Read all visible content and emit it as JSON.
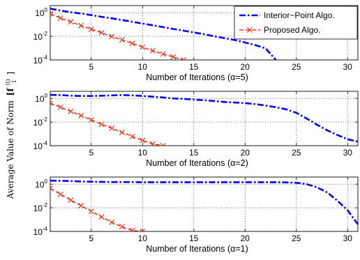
{
  "chart_data": {
    "type": "line",
    "ylabel": "Average Value of Norm",
    "ylabel_math": "[f",
    "ylabel_sup": "(t)",
    "ylabel_sub": "1",
    "ylabel_close": "]",
    "legend": {
      "placement": "top-right",
      "entries": [
        {
          "label": "Interior−Point Algo.",
          "color": "#0000ff",
          "style": "dash-dot"
        },
        {
          "label": "Proposed Algo.",
          "color": "#ff0000",
          "marker_color": "#d94820",
          "style": "dashed-x"
        }
      ]
    },
    "x_ticks": [
      5,
      10,
      15,
      20,
      25,
      30
    ],
    "y_tick_base": "10",
    "y_tick_exponents": [
      "0",
      "-2",
      "-4"
    ],
    "grid": "dotted",
    "panels": [
      {
        "xlabel": "Number of Iterations (α=5)",
        "xlim": [
          1,
          31
        ],
        "ylim_log10": [
          -4,
          0.6
        ],
        "interior_point": {
          "x": [
            1,
            2,
            3,
            4,
            5,
            6,
            7,
            8,
            9,
            10,
            11,
            12,
            13,
            14,
            15,
            16,
            17,
            18,
            19,
            20,
            21,
            22,
            23
          ],
          "y": [
            2.2,
            1.5,
            1.1,
            0.85,
            0.62,
            0.45,
            0.33,
            0.24,
            0.17,
            0.12,
            0.085,
            0.06,
            0.042,
            0.03,
            0.021,
            0.015,
            0.01,
            0.007,
            0.0048,
            0.003,
            0.0018,
            0.00095,
            0.0001
          ]
        },
        "proposed": {
          "x": [
            1,
            2,
            3,
            4,
            5,
            6,
            7,
            8,
            9,
            10,
            11,
            12,
            13,
            14
          ],
          "y": [
            0.8,
            0.35,
            0.17,
            0.08,
            0.04,
            0.02,
            0.0095,
            0.005,
            0.0025,
            0.0012,
            0.0006,
            0.00032,
            0.00018,
            0.0001
          ]
        }
      },
      {
        "xlabel": "Number of Iterations (α=2)",
        "xlim": [
          1,
          31
        ],
        "ylim_log10": [
          -4,
          0.6
        ],
        "interior_point": {
          "x": [
            1,
            2,
            3,
            4,
            5,
            6,
            7,
            8,
            9,
            10,
            11,
            12,
            13,
            14,
            15,
            16,
            17,
            18,
            19,
            20,
            21,
            22,
            23,
            24,
            25,
            26,
            27,
            28,
            29,
            30,
            31
          ],
          "y": [
            2.0,
            1.9,
            1.7,
            1.6,
            1.6,
            1.7,
            1.8,
            1.9,
            1.8,
            1.6,
            1.4,
            1.2,
            1.0,
            0.9,
            0.8,
            0.7,
            0.6,
            0.5,
            0.45,
            0.4,
            0.33,
            0.25,
            0.18,
            0.12,
            0.06,
            0.02,
            0.006,
            0.002,
            0.0008,
            0.00035,
            0.00022
          ]
        },
        "proposed": {
          "x": [
            1,
            2,
            3,
            4,
            5,
            6,
            7,
            8,
            9,
            10,
            11,
            12
          ],
          "y": [
            0.4,
            0.18,
            0.08,
            0.035,
            0.015,
            0.0065,
            0.003,
            0.0013,
            0.0006,
            0.00028,
            0.00014,
            0.0001
          ]
        }
      },
      {
        "xlabel": "Number of Iterations (α=1)",
        "xlim": [
          1,
          31
        ],
        "ylim_log10": [
          -4,
          0.6
        ],
        "interior_point": {
          "x": [
            1,
            2,
            3,
            4,
            5,
            6,
            7,
            8,
            9,
            10,
            11,
            12,
            13,
            14,
            15,
            16,
            17,
            18,
            19,
            20,
            21,
            22,
            23,
            24,
            25,
            26,
            27,
            28,
            29,
            30,
            31
          ],
          "y": [
            2.0,
            1.9,
            1.8,
            1.7,
            1.6,
            1.55,
            1.5,
            1.5,
            1.5,
            1.45,
            1.45,
            1.45,
            1.45,
            1.45,
            1.45,
            1.45,
            1.45,
            1.45,
            1.45,
            1.45,
            1.45,
            1.45,
            1.45,
            1.4,
            1.3,
            1.0,
            0.55,
            0.2,
            0.04,
            0.006,
            0.0004
          ]
        },
        "proposed": {
          "x": [
            1,
            2,
            3,
            4,
            5,
            6,
            7,
            8,
            9,
            10
          ],
          "y": [
            0.45,
            0.14,
            0.045,
            0.015,
            0.005,
            0.0017,
            0.0006,
            0.00025,
            0.00012,
            0.0001
          ]
        }
      }
    ]
  }
}
